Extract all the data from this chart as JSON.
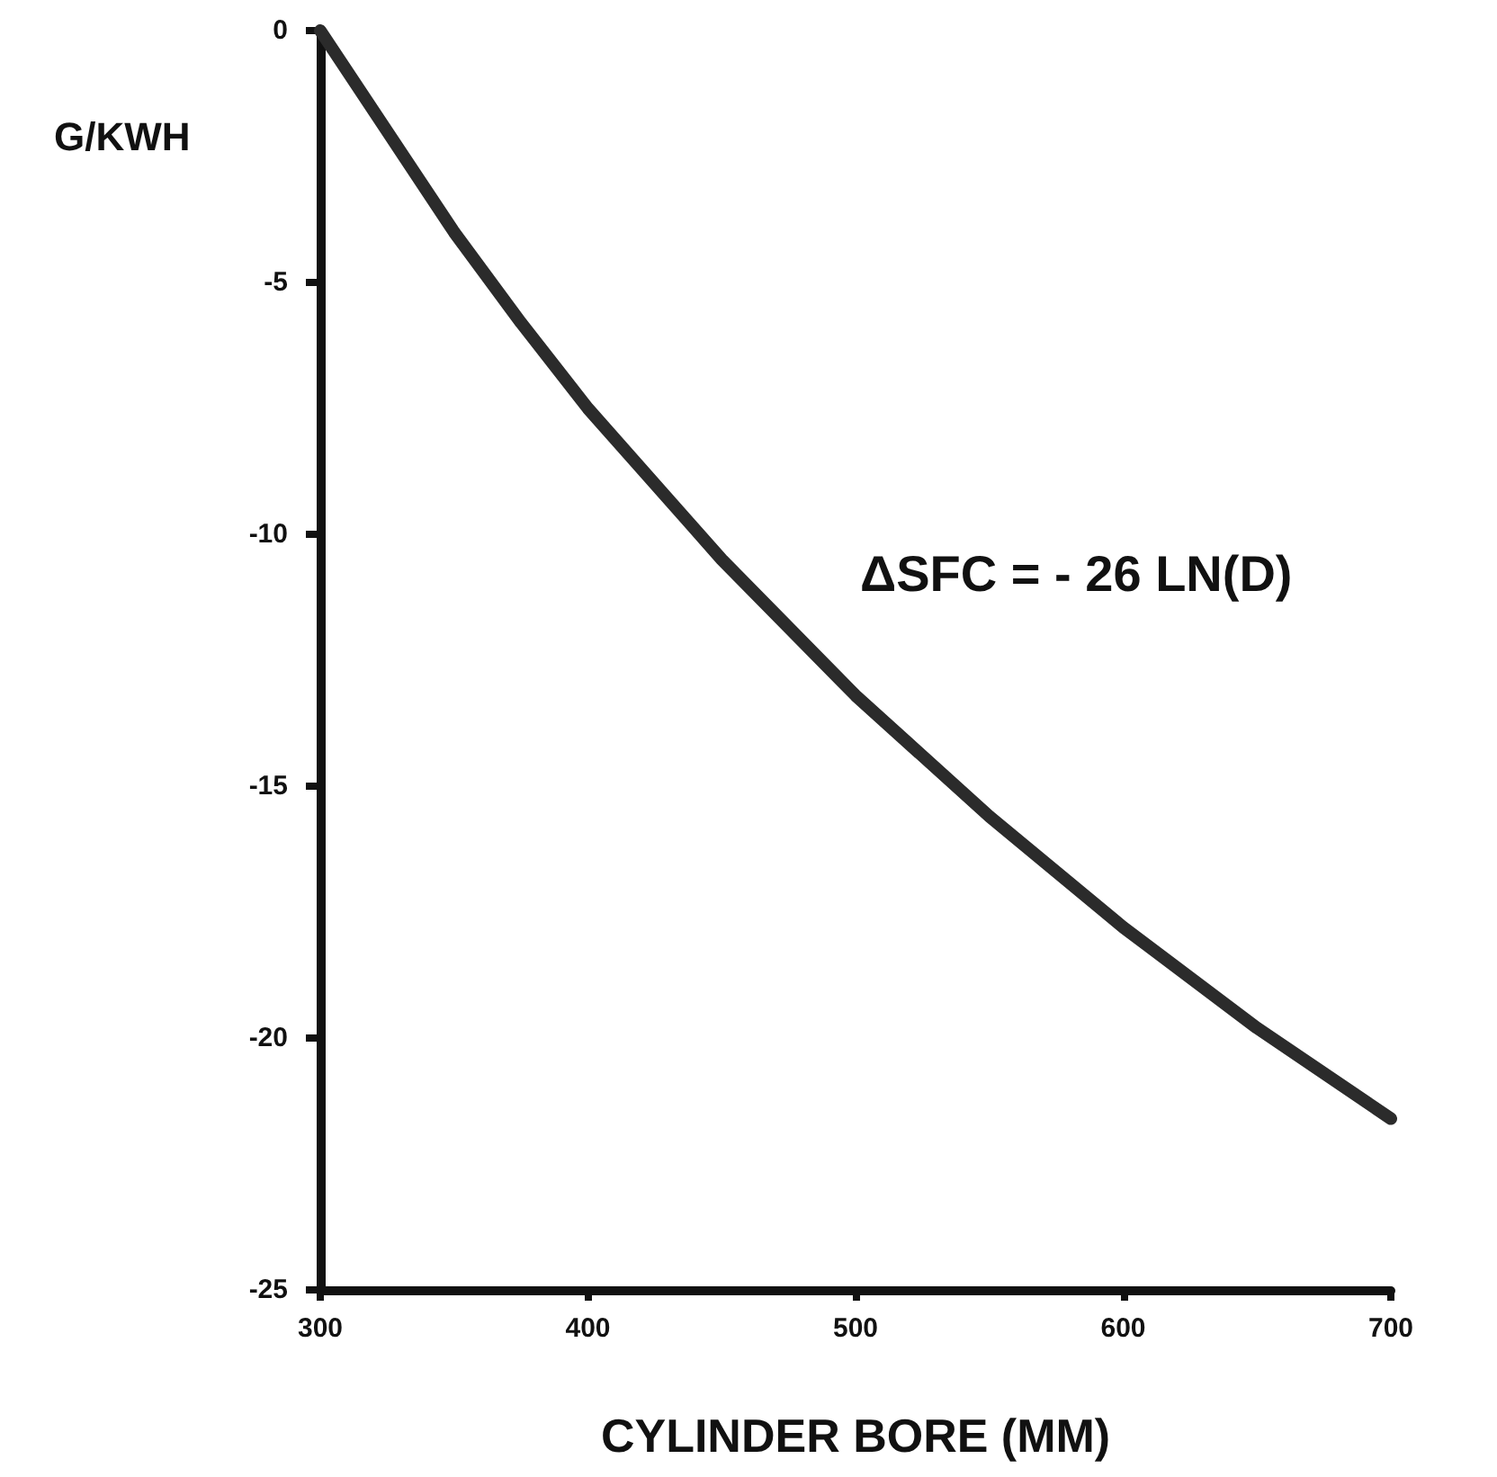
{
  "chart_data": {
    "type": "line",
    "xlabel": "CYLINDER BORE (MM)",
    "ylabel": "G/KWH",
    "x": [
      300,
      325,
      350,
      375,
      400,
      450,
      500,
      550,
      600,
      650,
      700
    ],
    "series": [
      {
        "color": "#2b2b2b",
        "values": [
          0,
          -2,
          -4,
          -5.8,
          -7.5,
          -10.5,
          -13.2,
          -15.6,
          -17.8,
          -19.8,
          -21.6
        ]
      }
    ],
    "xlim": [
      300,
      700
    ],
    "xticks": [
      300,
      400,
      500,
      600,
      700
    ],
    "ylim": [
      -25,
      0
    ],
    "yticks": [
      -25,
      -20,
      -15,
      -10,
      -5,
      0
    ],
    "annotations": [
      "ΔSFC = - 26 LN(D)"
    ],
    "grid": false,
    "line_style": "solid"
  }
}
